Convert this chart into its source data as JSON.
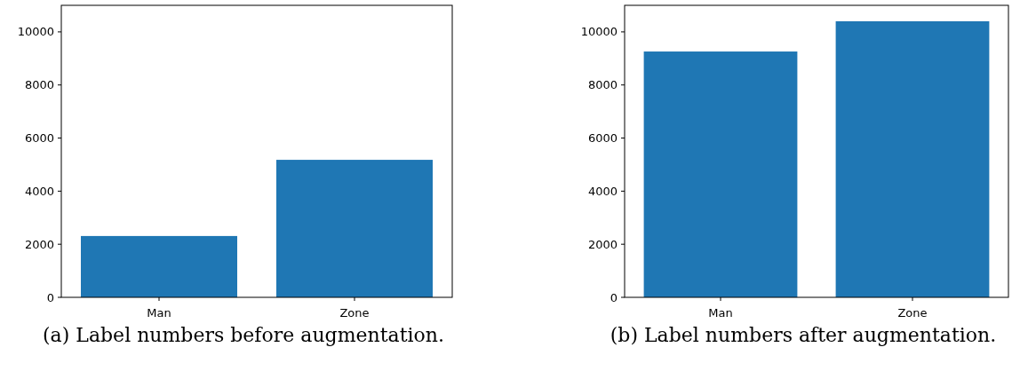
{
  "chart_data": [
    {
      "type": "bar",
      "title": "(a) Label numbers before augmentation.",
      "categories": [
        "Man",
        "Zone"
      ],
      "values": [
        2310,
        5180
      ],
      "color": "#1f77b4",
      "ylim": [
        0,
        11000
      ],
      "yticks": [
        0,
        2000,
        4000,
        6000,
        8000,
        10000
      ],
      "grid": false
    },
    {
      "type": "bar",
      "title": "(b) Label numbers after augmentation.",
      "categories": [
        "Man",
        "Zone"
      ],
      "values": [
        9260,
        10400
      ],
      "color": "#1f77b4",
      "ylim": [
        0,
        11000
      ],
      "yticks": [
        0,
        2000,
        4000,
        6000,
        8000,
        10000
      ],
      "grid": false
    }
  ]
}
